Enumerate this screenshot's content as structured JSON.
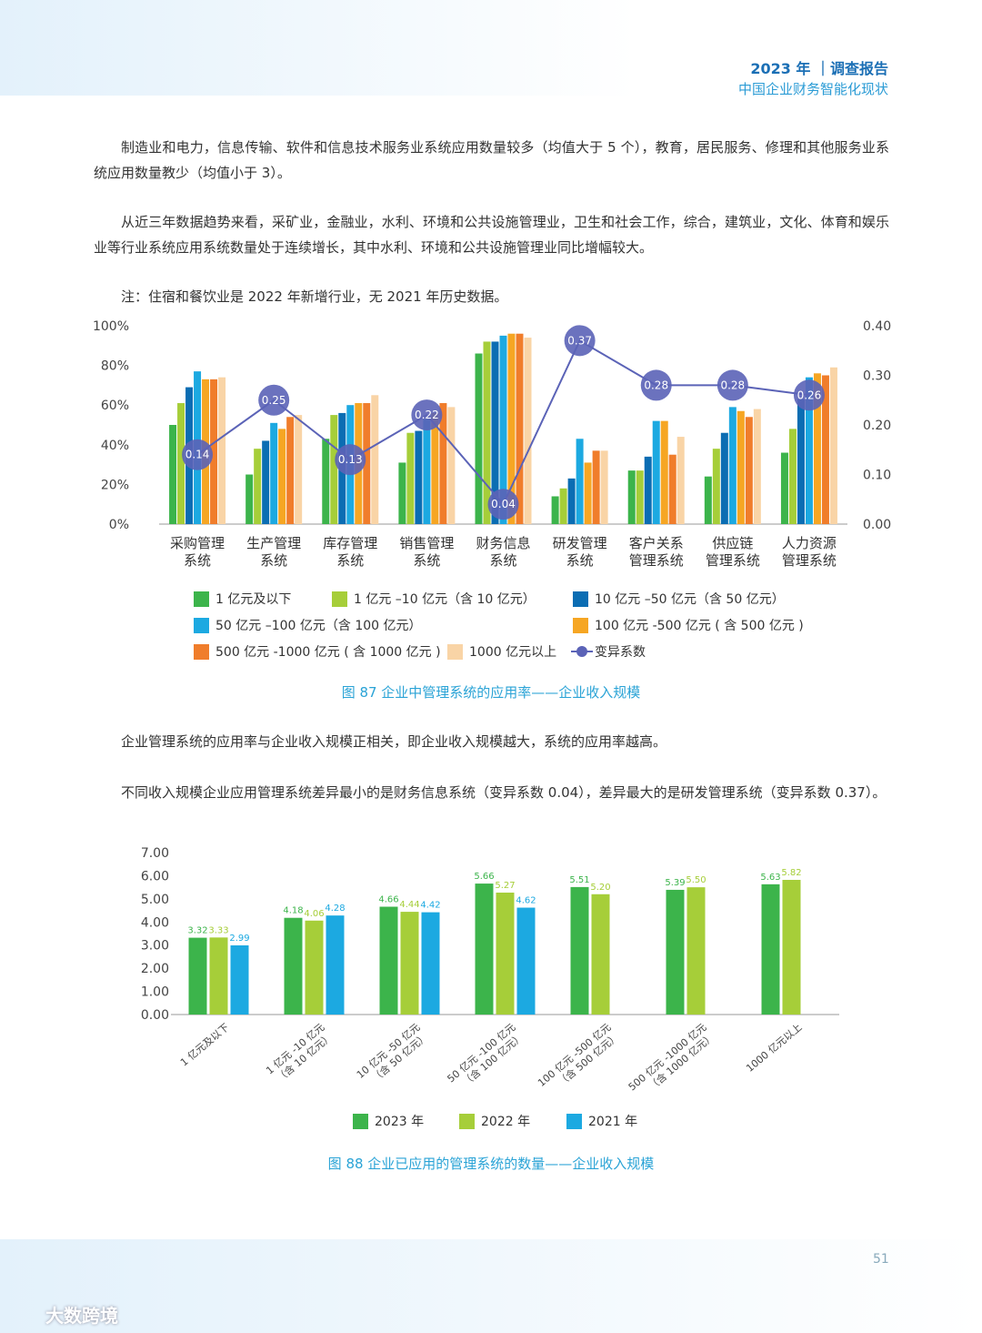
{
  "header": {
    "title": "2023 年 ｜调查报告",
    "subtitle": "中国企业财务智能化现状"
  },
  "paragraphs": [
    "制造业和电力，信息传输、软件和信息技术服务业系统应用数量较多（均值大于 5 个），教育，居民服务、修理和其他服务业系统应用数量教少（均值小于 3）。",
    "从近三年数据趋势来看，采矿业，金融业，水利、环境和公共设施管理业，卫生和社会工作，综合，建筑业，文化、体育和娱乐业等行业系统应用系统数量处于连续增长，其中水利、环境和公共设施管理业同比增幅较大。",
    "注：住宿和餐饮业是 2022 年新增行业，无 2021 年历史数据。",
    "企业管理系统的应用率与企业收入规模正相关，即企业收入规模越大，系统的应用率越高。",
    "不同收入规模企业应用管理系统差异最小的是财务信息系统（变异系数 0.04），差异最大的是研发管理系统（变异系数 0.37）。"
  ],
  "chart_data": [
    {
      "type": "bar",
      "title": "图 87  企业中管理系统的应用率——企业收入规模",
      "categories": [
        "采购管理\n系统",
        "生产管理\n系统",
        "库存管理\n系统",
        "销售管理\n系统",
        "财务信息\n系统",
        "研发管理\n系统",
        "客户关系\n管理系统",
        "供应链\n管理系统",
        "人力资源\n管理系统"
      ],
      "ylim": [
        0,
        100
      ],
      "yticks": [
        {
          "value": 0,
          "label": "0%"
        },
        {
          "value": 20,
          "label": "20%"
        },
        {
          "value": 40,
          "label": "40%"
        },
        {
          "value": 60,
          "label": "60%"
        },
        {
          "value": 80,
          "label": "80%"
        },
        {
          "value": 100,
          "label": "100%"
        }
      ],
      "y2lim": [
        0,
        0.4
      ],
      "y2ticks": [
        {
          "value": 0,
          "label": "0.00"
        },
        {
          "value": 0.1,
          "label": "0.10"
        },
        {
          "value": 0.2,
          "label": "0.20"
        },
        {
          "value": 0.3,
          "label": "0.30"
        },
        {
          "value": 0.4,
          "label": "0.40"
        }
      ],
      "grid": false,
      "series": [
        {
          "name": "1 亿元及以下",
          "color": "#3cb44b",
          "values": [
            50,
            25,
            43,
            31,
            86,
            14,
            27,
            24,
            36
          ]
        },
        {
          "name": "1 亿元 –10 亿元（含 10 亿元）",
          "color": "#a6ce39",
          "values": [
            61,
            38,
            55,
            46,
            92,
            18,
            27,
            38,
            48
          ]
        },
        {
          "name": "10 亿元 –50 亿元（含 50 亿元）",
          "color": "#0b6db3",
          "values": [
            69,
            42,
            56,
            47,
            92,
            23,
            34,
            46,
            63
          ]
        },
        {
          "name": "50 亿元 –100 亿元（含 100 亿元）",
          "color": "#1ca9e1",
          "values": [
            77,
            51,
            60,
            53,
            95,
            43,
            52,
            59,
            74
          ]
        },
        {
          "name": "100 亿元 -500 亿元 ( 含 500 亿元 )",
          "color": "#f6a623",
          "values": [
            73,
            48,
            61,
            56,
            96,
            31,
            52,
            57,
            76
          ]
        },
        {
          "name": "500 亿元 -1000 亿元 ( 含 1000 亿元 )",
          "color": "#f07d2b",
          "values": [
            73,
            54,
            61,
            61,
            96,
            37,
            35,
            54,
            75
          ]
        },
        {
          "name": "1000 亿元以上",
          "color": "#f9d4a6",
          "values": [
            74,
            55,
            65,
            59,
            94,
            37,
            44,
            58,
            79
          ]
        },
        {
          "name": "变异系数",
          "color": "#5b63b7",
          "type": "line",
          "axis": "y2",
          "values": [
            0.14,
            0.25,
            0.13,
            0.22,
            0.04,
            0.37,
            0.28,
            0.28,
            0.26
          ]
        }
      ]
    },
    {
      "type": "bar",
      "title": "图 88 企业已应用的管理系统的数量——企业收入规模",
      "categories": [
        "1 亿元及以下",
        "1 亿元 -10 亿元\n（含 10 亿元）",
        "10 亿元 -50 亿元\n（含 50 亿元）",
        "50 亿元 -100 亿元\n（含 100 亿元）",
        "100 亿元 -500 亿元\n（含 500 亿元）",
        "500 亿元 -1000 亿元\n（含 1000 亿元）",
        "1000 亿元以上"
      ],
      "ylim": [
        0,
        7
      ],
      "yticks": [
        {
          "value": 0,
          "label": "0.00"
        },
        {
          "value": 1,
          "label": "1.00"
        },
        {
          "value": 2,
          "label": "2.00"
        },
        {
          "value": 3,
          "label": "3.00"
        },
        {
          "value": 4,
          "label": "4.00"
        },
        {
          "value": 5,
          "label": "5.00"
        },
        {
          "value": 6,
          "label": "6.00"
        },
        {
          "value": 7,
          "label": "7.00"
        }
      ],
      "grid": false,
      "series": [
        {
          "name": "2023 年",
          "color": "#3cb44b",
          "values": [
            3.32,
            4.18,
            4.66,
            5.66,
            5.51,
            5.39,
            5.63
          ],
          "value_labels": [
            "3.32",
            "4.18",
            "4.66",
            "5.66",
            "5.51",
            "5.39",
            "5.63"
          ]
        },
        {
          "name": "2022 年",
          "color": "#a6ce39",
          "values": [
            3.33,
            4.06,
            4.44,
            5.27,
            5.2,
            5.5,
            5.82
          ],
          "value_labels": [
            "3.33",
            "4.06",
            "4.44",
            "5.27",
            "5.20",
            "5.50",
            "5.82"
          ]
        },
        {
          "name": "2021 年",
          "color": "#1ca9e1",
          "values": [
            2.99,
            4.28,
            4.42,
            4.62,
            null,
            null,
            null
          ],
          "value_labels": [
            "2.99",
            "4.28",
            "4.42",
            "4.62",
            null,
            null,
            null
          ]
        }
      ]
    }
  ],
  "page_number": "51",
  "watermark": "大数跨境"
}
